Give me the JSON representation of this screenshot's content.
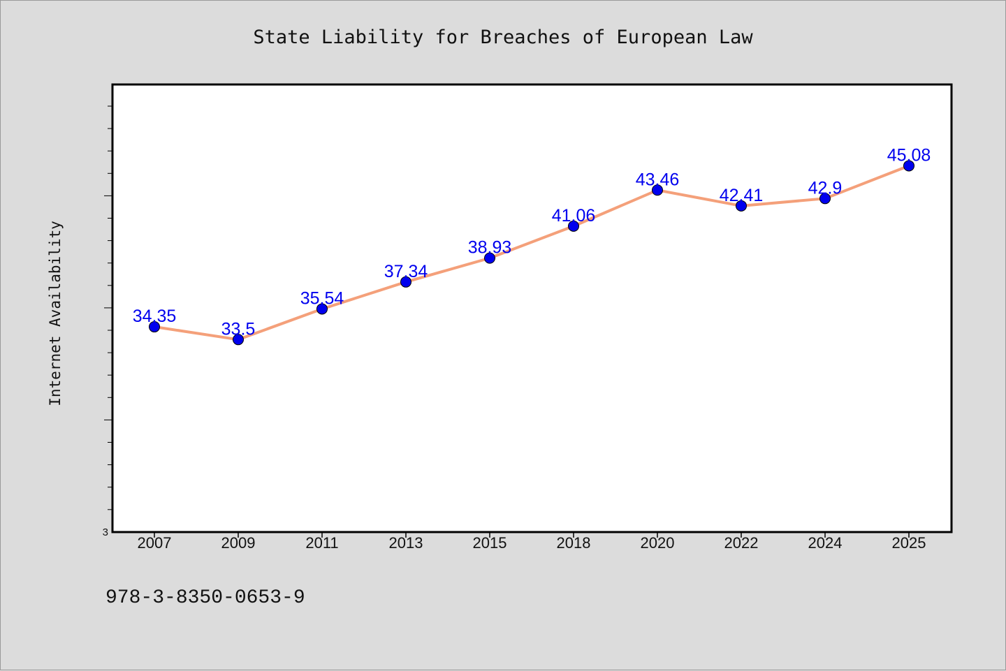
{
  "colors": {
    "background": "#dcdcdc",
    "plot_background": "#ffffff",
    "line": "#f4a07a",
    "marker": "#0000ee",
    "data_label": "#0000ee"
  },
  "footer": {
    "isbn": "978-3-8350-0653-9"
  },
  "chart_data": {
    "type": "line",
    "title": "State Liability for Breaches of European Law",
    "xlabel": "",
    "ylabel": "Internet Availability",
    "categories": [
      "2007",
      "2009",
      "2011",
      "2013",
      "2015",
      "2018",
      "2020",
      "2022",
      "2024",
      "2025"
    ],
    "series": [
      {
        "values": [
          34.35,
          33.5,
          35.54,
          37.34,
          38.93,
          41.06,
          43.46,
          42.41,
          42.9,
          45.08
        ]
      }
    ],
    "data_labels": [
      "34.35",
      "33.5",
      "35.54",
      "37.34",
      "38.93",
      "41.06",
      "43.46",
      "42.41",
      "42.9",
      "45.08"
    ],
    "ylim": [
      20.67,
      50.5
    ],
    "ytick_labels": [
      "3"
    ],
    "grid": false,
    "legend": "none"
  }
}
